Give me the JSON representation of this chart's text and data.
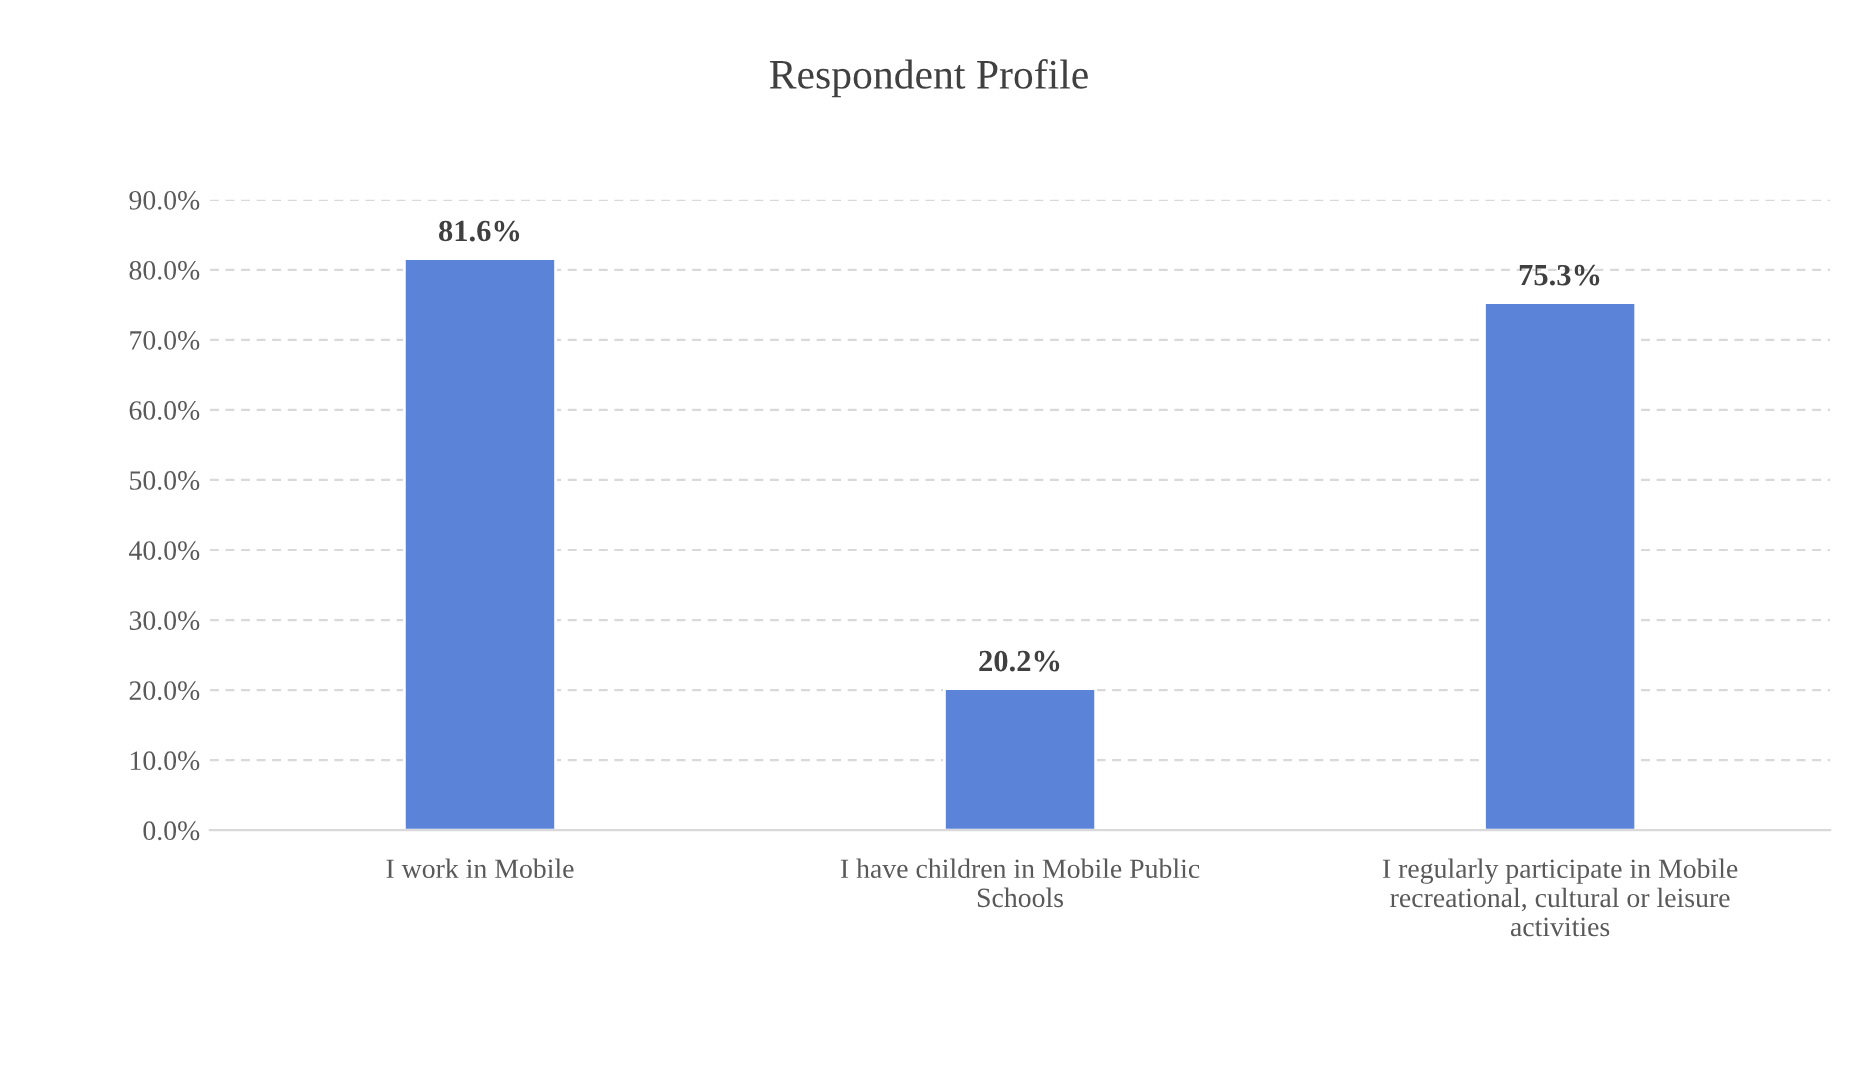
{
  "chart_data": {
    "type": "bar",
    "title": "Respondent Profile",
    "categories": [
      "I work in Mobile",
      "I have children in Mobile Public Schools",
      "I regularly participate in Mobile recreational, cultural or leisure activities"
    ],
    "values": [
      81.6,
      20.2,
      75.3
    ],
    "value_labels": [
      "81.6%",
      "20.2%",
      "75.3%"
    ],
    "color": "#5b84d9",
    "ylim": [
      0,
      90
    ],
    "yticks": [
      {
        "value": 0,
        "label": "0.0%"
      },
      {
        "value": 10,
        "label": "10.0%"
      },
      {
        "value": 20,
        "label": "20.0%"
      },
      {
        "value": 30,
        "label": "30.0%"
      },
      {
        "value": 40,
        "label": "40.0%"
      },
      {
        "value": 50,
        "label": "50.0%"
      },
      {
        "value": 60,
        "label": "60.0%"
      },
      {
        "value": 70,
        "label": "70.0%"
      },
      {
        "value": 80,
        "label": "80.0%"
      },
      {
        "value": 90,
        "label": "90.0%"
      }
    ],
    "grid": "y"
  }
}
